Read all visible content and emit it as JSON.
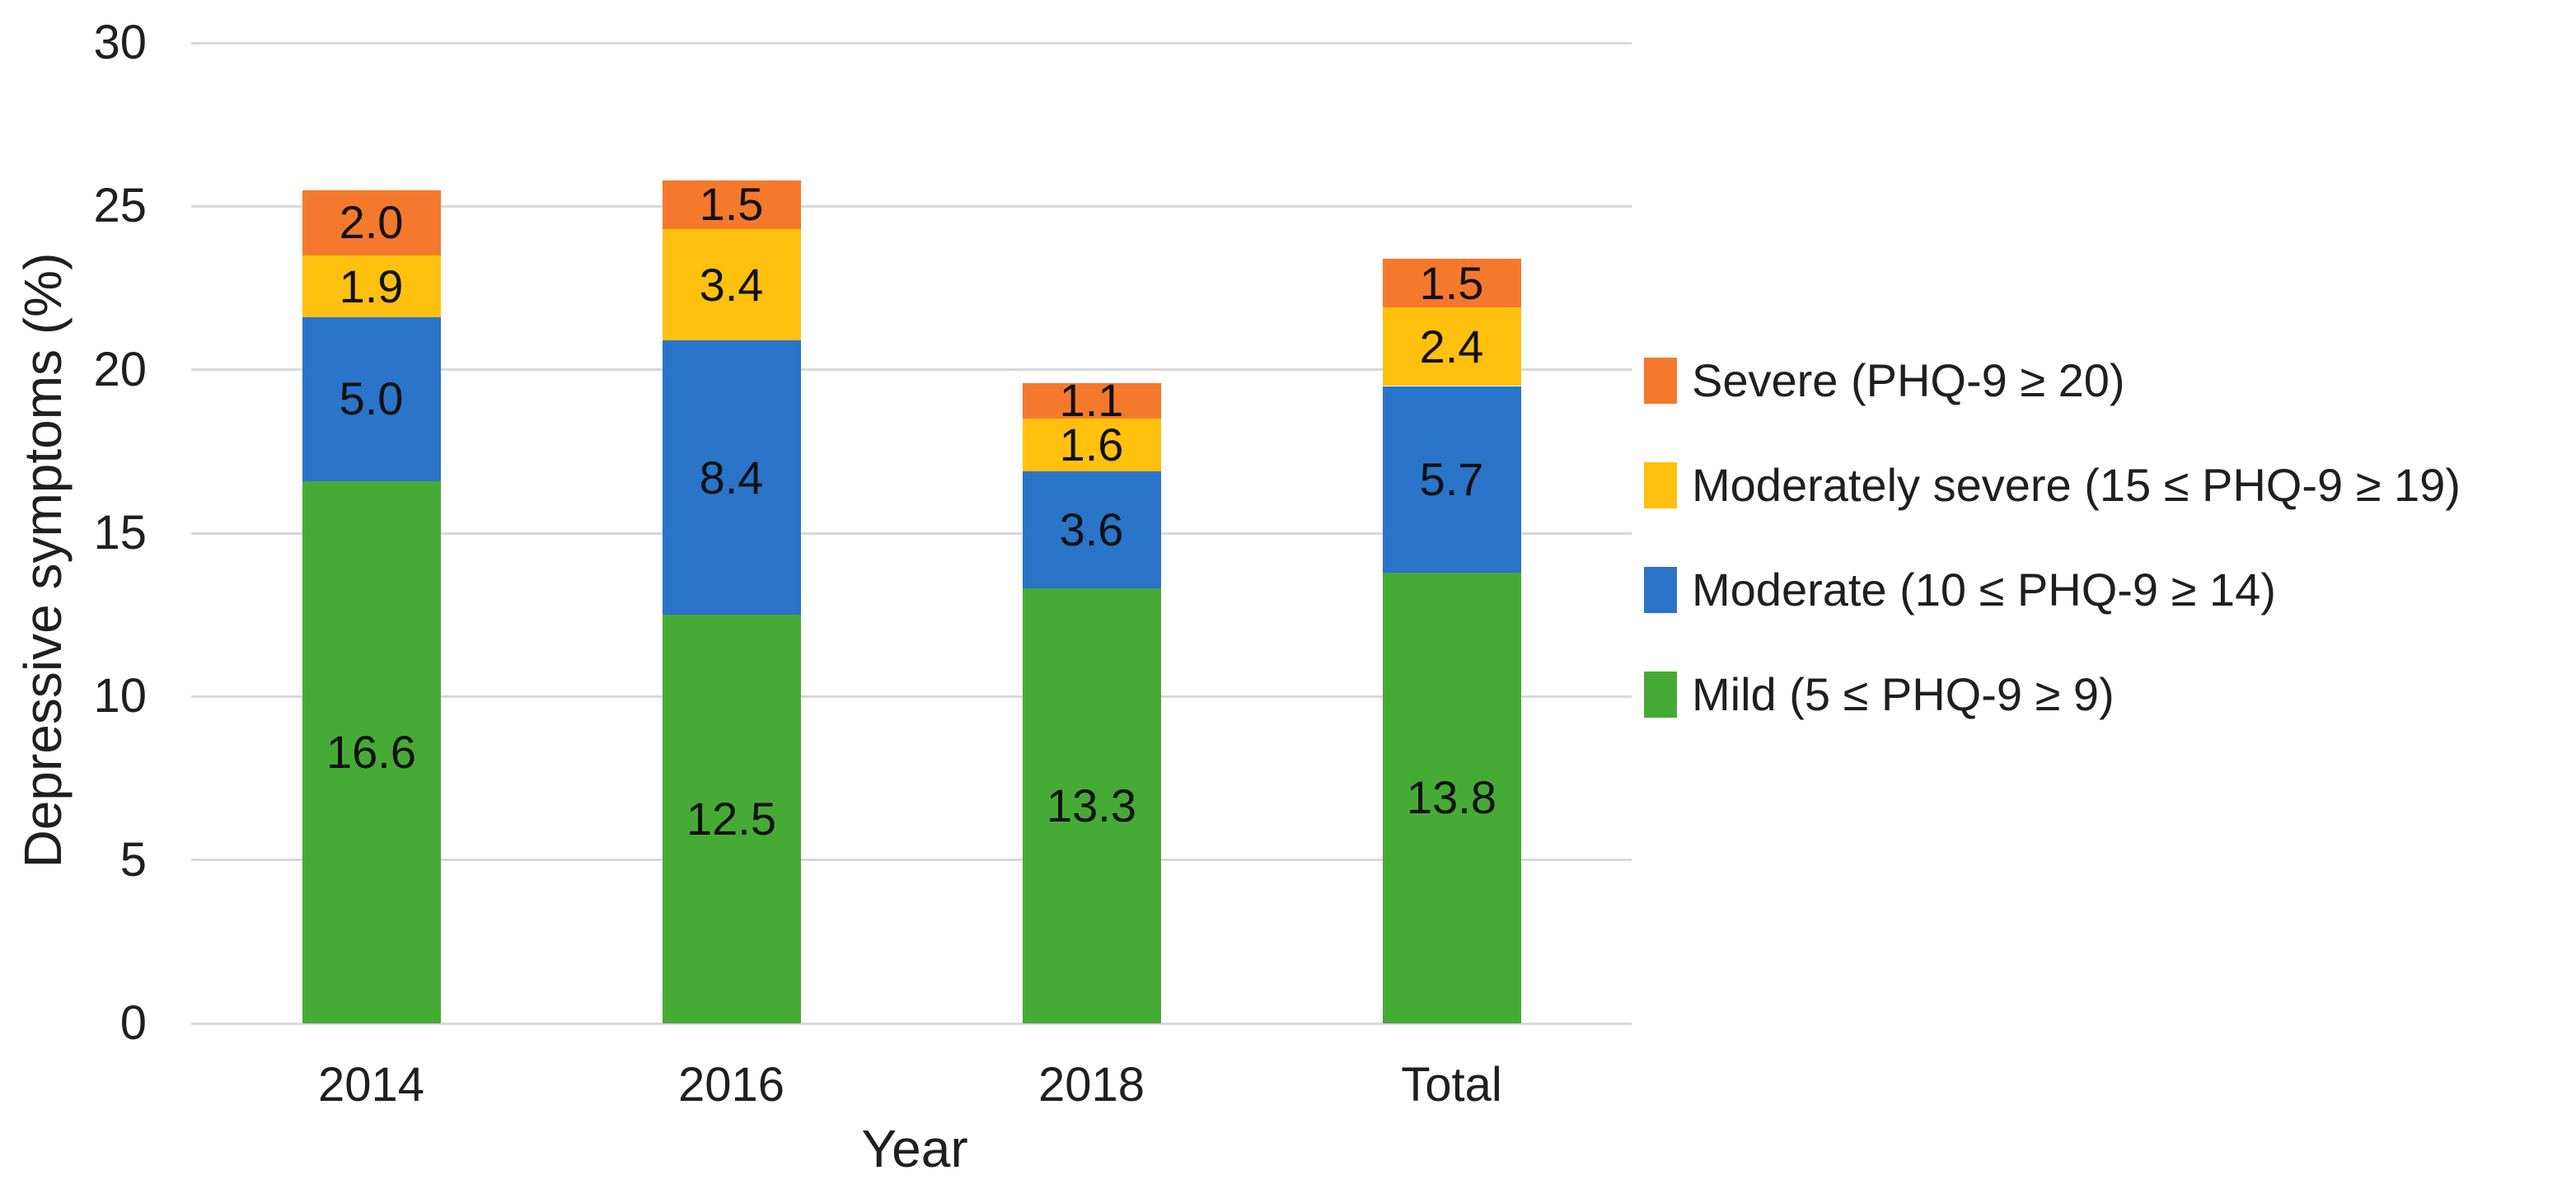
{
  "chart_data": {
    "type": "bar",
    "stacked": true,
    "title": "",
    "xlabel": "Year",
    "ylabel": "Depressive symptoms (%)",
    "categories": [
      "2014",
      "2016",
      "2018",
      "Total"
    ],
    "series": [
      {
        "name": "Mild (5 ≤ PHQ-9 ≥ 9)",
        "color": "#46ab35",
        "values": [
          16.6,
          12.5,
          13.3,
          13.8
        ]
      },
      {
        "name": "Moderate (10 ≤ PHQ-9 ≥ 14)",
        "color": "#2a74c9",
        "values": [
          5.0,
          8.4,
          3.6,
          5.7
        ]
      },
      {
        "name": "Moderately severe (15 ≤ PHQ-9 ≥ 19)",
        "color": "#ffc10d",
        "values": [
          1.9,
          3.4,
          1.6,
          2.4
        ]
      },
      {
        "name": "Severe (PHQ-9 ≥ 20)",
        "color": "#f5792c",
        "values": [
          2.0,
          1.5,
          1.1,
          1.5
        ]
      }
    ],
    "ylim": [
      0,
      30
    ],
    "yticks": [
      0,
      5,
      10,
      15,
      20,
      25,
      30
    ],
    "grid": true,
    "legend_position": "right",
    "legend_order": "reversed",
    "value_labels": "inside-center-1dp",
    "colors": {
      "gridline": "#d9d9d9",
      "text": "#1f1f1f",
      "value_label": "#111111"
    }
  }
}
